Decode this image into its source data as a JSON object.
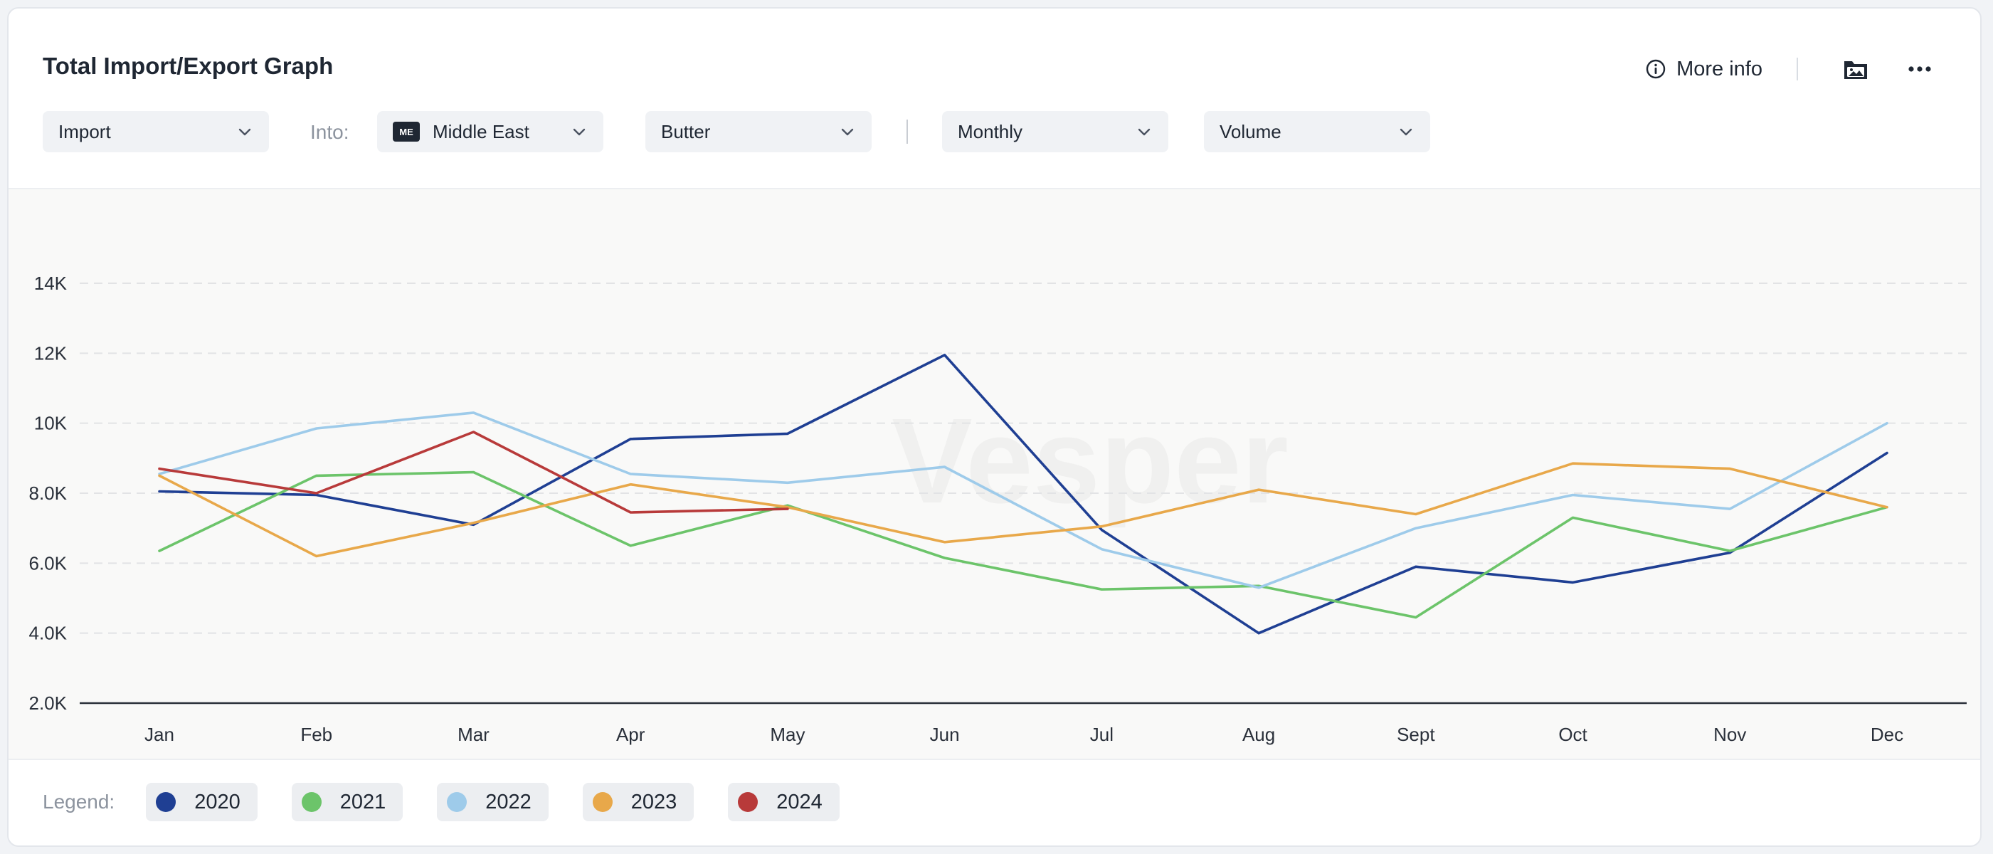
{
  "header": {
    "title": "Total Import/Export Graph",
    "more_info_label": "More info"
  },
  "icons": {
    "info": "info-circle-icon",
    "image": "image-folder-icon",
    "more": "more-horizontal-icon",
    "chevron": "chevron-down-icon"
  },
  "filters": {
    "flow": "Import",
    "into_label": "Into:",
    "region_badge": "ME",
    "region": "Middle East",
    "product": "Butter",
    "period": "Monthly",
    "measure": "Volume"
  },
  "watermark": "Vesper",
  "legend": {
    "label": "Legend:",
    "items": [
      "2020",
      "2021",
      "2022",
      "2023",
      "2024"
    ]
  },
  "colors": {
    "2020": "#1f3f93",
    "2021": "#6cc46a",
    "2022": "#9ecbea",
    "2023": "#e8a84a",
    "2024": "#b83a3a"
  },
  "chart_data": {
    "type": "line",
    "x": [
      "Jan",
      "Feb",
      "Mar",
      "Apr",
      "May",
      "Jun",
      "Jul",
      "Aug",
      "Sept",
      "Oct",
      "Nov",
      "Dec"
    ],
    "y_ticks": [
      "2.0K",
      "4.0K",
      "6.0K",
      "8.0K",
      "10K",
      "12K",
      "14K"
    ],
    "ylim": [
      2000,
      14000
    ],
    "grid": true,
    "legend_position": "bottom-left",
    "series": [
      {
        "name": "2020",
        "color": "#1f3f93",
        "values": [
          8050,
          7950,
          7100,
          9550,
          9700,
          11950,
          6950,
          4000,
          5900,
          5450,
          6300,
          9150
        ]
      },
      {
        "name": "2021",
        "color": "#6cc46a",
        "values": [
          6350,
          8500,
          8600,
          6500,
          7650,
          6150,
          5250,
          5350,
          4450,
          7300,
          6350,
          7600
        ]
      },
      {
        "name": "2022",
        "color": "#9ecbea",
        "values": [
          8550,
          9850,
          10300,
          8550,
          8300,
          8750,
          6400,
          5300,
          7000,
          7950,
          7550,
          10000
        ]
      },
      {
        "name": "2023",
        "color": "#e8a84a",
        "values": [
          8500,
          6200,
          7150,
          8250,
          7600,
          6600,
          7050,
          8100,
          7400,
          8850,
          8700,
          7600
        ]
      },
      {
        "name": "2024",
        "color": "#b83a3a",
        "values": [
          8700,
          8000,
          9750,
          7450,
          7550,
          null,
          null,
          null,
          null,
          null,
          null,
          null
        ]
      }
    ]
  }
}
